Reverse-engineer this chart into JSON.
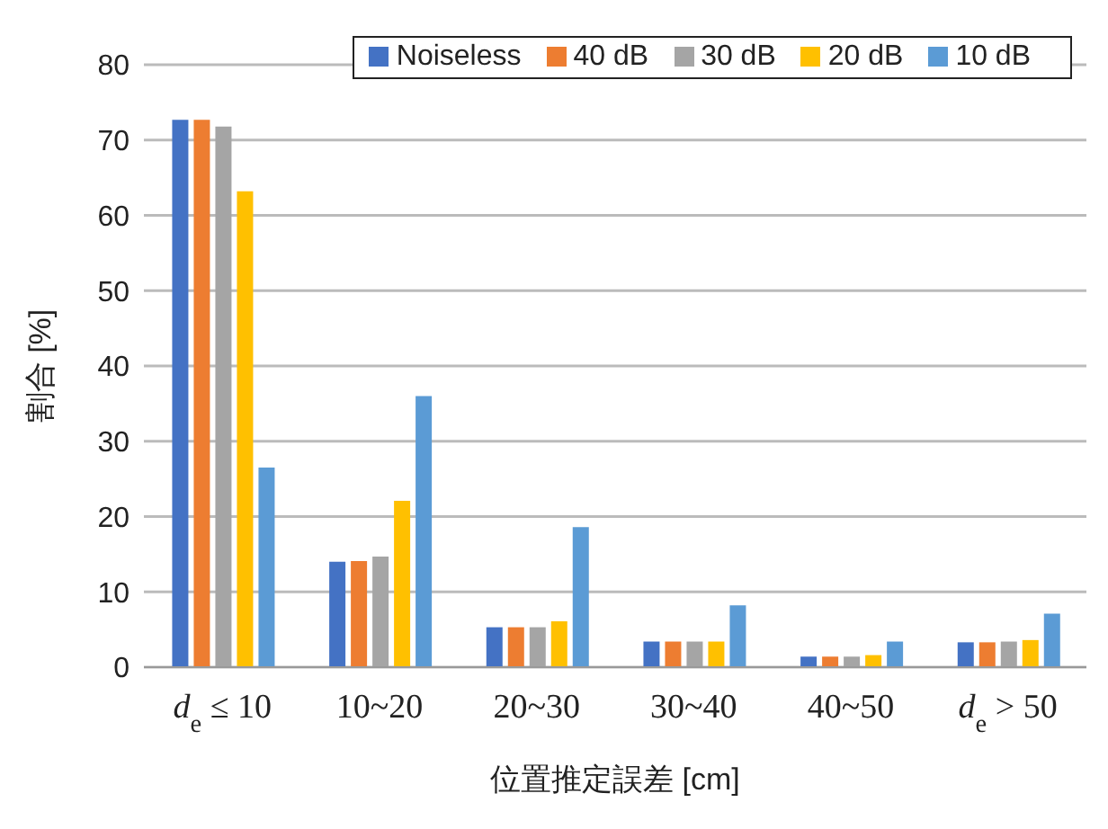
{
  "chart_data": {
    "type": "bar",
    "xlabel": "位置推定誤差 [cm]",
    "ylabel": "割合 [%]",
    "categories": [
      "d$_{e}$ ≤ 10",
      "10~20",
      "20~30",
      "30~40",
      "40~50",
      "d$_{e}$> 50"
    ],
    "series": [
      {
        "name": "Noiseless",
        "color": "#4472c4",
        "values": [
          72.7,
          14.0,
          5.3,
          3.4,
          1.4,
          3.3
        ]
      },
      {
        "name": "40 dB",
        "color": "#ed7d31",
        "values": [
          72.7,
          14.1,
          5.3,
          3.4,
          1.4,
          3.3
        ]
      },
      {
        "name": "30 dB",
        "color": "#a5a5a5",
        "values": [
          71.8,
          14.7,
          5.3,
          3.4,
          1.4,
          3.4
        ]
      },
      {
        "name": "20 dB",
        "color": "#ffc000",
        "values": [
          63.2,
          22.1,
          6.1,
          3.4,
          1.6,
          3.6
        ]
      },
      {
        "name": "10 dB",
        "color": "#5b9bd5",
        "values": [
          26.5,
          36.0,
          18.6,
          8.2,
          3.4,
          7.1
        ]
      }
    ],
    "ylim": [
      0,
      80
    ],
    "yticks": [
      0,
      10,
      20,
      30,
      40,
      50,
      60,
      70,
      80
    ],
    "grid": "y",
    "legend": "top right"
  }
}
